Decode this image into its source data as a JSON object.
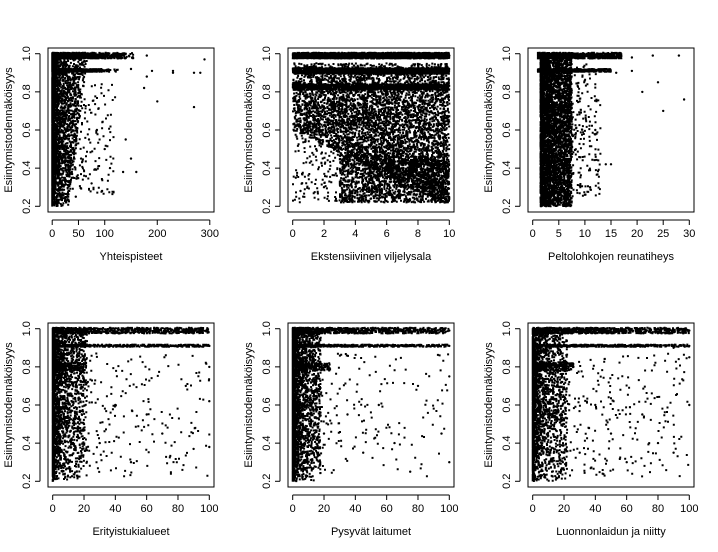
{
  "chart_data": [
    {
      "type": "scatter",
      "xlabel": "Yhteispisteet",
      "ylabel": "Esiintymistodennäköisyys",
      "xlim": [
        -8,
        308
      ],
      "ylim": [
        0.17,
        1.03
      ],
      "xticks": [
        0,
        50,
        100,
        200,
        300
      ],
      "xtick_labels": [
        "0",
        "50",
        "100",
        "200",
        "300"
      ],
      "yticks": [
        0.2,
        0.4,
        0.6,
        0.8,
        1.0
      ],
      "ytick_labels": [
        "0.2",
        "0.4",
        "0.6",
        "0.8",
        "1.0"
      ],
      "grid": false,
      "points": [
        [
          2,
          0.21
        ],
        [
          4,
          0.25
        ],
        [
          6,
          0.3
        ],
        [
          3,
          0.35
        ],
        [
          8,
          0.4
        ],
        [
          5,
          0.45
        ],
        [
          10,
          0.5
        ],
        [
          7,
          0.55
        ],
        [
          12,
          0.6
        ],
        [
          9,
          0.65
        ],
        [
          15,
          0.7
        ],
        [
          11,
          0.75
        ],
        [
          18,
          0.8
        ],
        [
          14,
          0.85
        ],
        [
          20,
          0.9
        ],
        [
          25,
          0.92
        ],
        [
          30,
          0.91
        ],
        [
          40,
          0.91
        ],
        [
          60,
          0.91
        ],
        [
          90,
          0.91
        ],
        [
          120,
          0.91
        ],
        [
          150,
          0.92
        ],
        [
          190,
          0.91
        ],
        [
          230,
          0.91
        ],
        [
          270,
          0.9
        ],
        [
          30,
          0.99
        ],
        [
          60,
          0.99
        ],
        [
          100,
          0.99
        ],
        [
          140,
          1.0
        ],
        [
          180,
          0.99
        ],
        [
          40,
          0.35
        ],
        [
          55,
          0.45
        ],
        [
          70,
          0.55
        ],
        [
          85,
          0.6
        ],
        [
          100,
          0.5
        ],
        [
          110,
          0.4
        ],
        [
          140,
          0.55
        ],
        [
          150,
          0.45
        ],
        [
          175,
          0.82
        ],
        [
          180,
          0.88
        ],
        [
          200,
          0.75
        ],
        [
          270,
          0.72
        ],
        [
          230,
          0.9
        ],
        [
          282,
          0.9
        ],
        [
          290,
          0.97
        ],
        [
          160,
          0.38
        ],
        [
          135,
          0.38
        ],
        [
          95,
          0.28
        ],
        [
          75,
          0.32
        ],
        [
          45,
          0.25
        ]
      ]
    },
    {
      "type": "scatter",
      "xlabel": "Ekstensiivinen viljelysala",
      "ylabel": "Esiintymistodennäköisyys",
      "xlim": [
        -0.3,
        10.3
      ],
      "ylim": [
        0.17,
        1.03
      ],
      "xticks": [
        0,
        2,
        4,
        6,
        8,
        10
      ],
      "xtick_labels": [
        "0",
        "2",
        "4",
        "6",
        "8",
        "10"
      ],
      "yticks": [
        0.2,
        0.4,
        0.6,
        0.8,
        1.0
      ],
      "ytick_labels": [
        "0.2",
        "0.4",
        "0.6",
        "0.8",
        "1.0"
      ],
      "grid": false,
      "points": [
        [
          0.1,
          0.99
        ],
        [
          2,
          0.99
        ],
        [
          4,
          0.99
        ],
        [
          6,
          0.99
        ],
        [
          8,
          0.99
        ],
        [
          10,
          0.99
        ],
        [
          0.2,
          0.91
        ],
        [
          3,
          0.91
        ],
        [
          5,
          0.9
        ],
        [
          7,
          0.91
        ],
        [
          9,
          0.91
        ],
        [
          0.3,
          0.82
        ],
        [
          2.5,
          0.81
        ],
        [
          5,
          0.8
        ],
        [
          7.5,
          0.81
        ],
        [
          9.8,
          0.82
        ],
        [
          1,
          0.7
        ],
        [
          3,
          0.65
        ],
        [
          5,
          0.6
        ],
        [
          7,
          0.68
        ],
        [
          9,
          0.62
        ],
        [
          1.5,
          0.5
        ],
        [
          3.5,
          0.45
        ],
        [
          5.5,
          0.4
        ],
        [
          7.5,
          0.38
        ],
        [
          9.5,
          0.42
        ],
        [
          2,
          0.3
        ],
        [
          4,
          0.28
        ],
        [
          6,
          0.25
        ],
        [
          8,
          0.3
        ],
        [
          9.8,
          0.25
        ],
        [
          0.5,
          0.28
        ],
        [
          0.2,
          0.35
        ]
      ]
    },
    {
      "type": "scatter",
      "xlabel": "Peltolohkojen reunatiheys",
      "ylabel": "Esiintymistodennäköisyys",
      "xlim": [
        -0.9,
        30.9
      ],
      "ylim": [
        0.17,
        1.03
      ],
      "xticks": [
        0,
        5,
        10,
        15,
        20,
        25,
        30
      ],
      "xtick_labels": [
        "0",
        "5",
        "10",
        "15",
        "20",
        "25",
        "30"
      ],
      "yticks": [
        0.2,
        0.4,
        0.6,
        0.8,
        1.0
      ],
      "ytick_labels": [
        "0.2",
        "0.4",
        "0.6",
        "0.8",
        "1.0"
      ],
      "grid": false,
      "points": [
        [
          3,
          0.22
        ],
        [
          4,
          0.3
        ],
        [
          5,
          0.4
        ],
        [
          3.5,
          0.5
        ],
        [
          4.5,
          0.6
        ],
        [
          3,
          0.7
        ],
        [
          5,
          0.8
        ],
        [
          4,
          0.9
        ],
        [
          6,
          0.95
        ],
        [
          8,
          0.99
        ],
        [
          11,
          0.99
        ],
        [
          15,
          0.99
        ],
        [
          19,
          0.98
        ],
        [
          23,
          0.99
        ],
        [
          28,
          0.99
        ],
        [
          10,
          0.91
        ],
        [
          13,
          0.91
        ],
        [
          16,
          0.9
        ],
        [
          19,
          0.91
        ],
        [
          9,
          0.75
        ],
        [
          12,
          0.6
        ],
        [
          14,
          0.42
        ],
        [
          15,
          0.42
        ],
        [
          11,
          0.3
        ],
        [
          10,
          0.26
        ],
        [
          24,
          0.85
        ],
        [
          25,
          0.7
        ],
        [
          29,
          0.76
        ],
        [
          21,
          0.8
        ]
      ]
    },
    {
      "type": "scatter",
      "xlabel": "Erityistukialueet",
      "ylabel": "Esiintymistodennäköisyys",
      "xlim": [
        -3,
        103
      ],
      "ylim": [
        0.17,
        1.03
      ],
      "xticks": [
        0,
        20,
        40,
        60,
        80,
        100
      ],
      "xtick_labels": [
        "0",
        "20",
        "40",
        "60",
        "80",
        "100"
      ],
      "yticks": [
        0.2,
        0.4,
        0.6,
        0.8,
        1.0
      ],
      "ytick_labels": [
        "0.2",
        "0.4",
        "0.6",
        "0.8",
        "1.0"
      ],
      "grid": false,
      "points": [
        [
          1,
          0.22
        ],
        [
          2,
          0.3
        ],
        [
          3,
          0.4
        ],
        [
          1,
          0.5
        ],
        [
          4,
          0.6
        ],
        [
          2,
          0.7
        ],
        [
          5,
          0.8
        ],
        [
          3,
          0.9
        ],
        [
          10,
          0.91
        ],
        [
          30,
          0.91
        ],
        [
          50,
          0.91
        ],
        [
          70,
          0.91
        ],
        [
          90,
          0.91
        ],
        [
          100,
          0.91
        ],
        [
          15,
          0.99
        ],
        [
          35,
          0.99
        ],
        [
          55,
          0.99
        ],
        [
          75,
          1.0
        ],
        [
          95,
          0.99
        ],
        [
          20,
          0.5
        ],
        [
          30,
          0.4
        ],
        [
          40,
          0.6
        ],
        [
          50,
          0.3
        ],
        [
          60,
          0.55
        ],
        [
          70,
          0.45
        ],
        [
          85,
          0.7
        ],
        [
          90,
          0.37
        ],
        [
          100,
          0.38
        ],
        [
          100,
          0.62
        ],
        [
          100,
          0.8
        ]
      ]
    },
    {
      "type": "scatter",
      "xlabel": "Pysyvät laitumet",
      "ylabel": "Esiintymistodennäköisyys",
      "xlim": [
        -3,
        103
      ],
      "ylim": [
        0.17,
        1.03
      ],
      "xticks": [
        0,
        20,
        40,
        60,
        80,
        100
      ],
      "xtick_labels": [
        "0",
        "20",
        "40",
        "60",
        "80",
        "100"
      ],
      "yticks": [
        0.2,
        0.4,
        0.6,
        0.8,
        1.0
      ],
      "ytick_labels": [
        "0.2",
        "0.4",
        "0.6",
        "0.8",
        "1.0"
      ],
      "grid": false,
      "points": [
        [
          1,
          0.22
        ],
        [
          2,
          0.3
        ],
        [
          3,
          0.4
        ],
        [
          1,
          0.5
        ],
        [
          4,
          0.6
        ],
        [
          2,
          0.7
        ],
        [
          5,
          0.8
        ],
        [
          3,
          0.9
        ],
        [
          10,
          0.91
        ],
        [
          30,
          0.91
        ],
        [
          50,
          0.91
        ],
        [
          70,
          0.91
        ],
        [
          90,
          0.91
        ],
        [
          100,
          0.91
        ],
        [
          15,
          0.99
        ],
        [
          35,
          0.99
        ],
        [
          55,
          0.99
        ],
        [
          75,
          1.0
        ],
        [
          100,
          0.99
        ],
        [
          20,
          0.45
        ],
        [
          35,
          0.55
        ],
        [
          45,
          0.35
        ],
        [
          55,
          0.6
        ],
        [
          65,
          0.4
        ],
        [
          75,
          0.25
        ],
        [
          80,
          0.7
        ],
        [
          95,
          0.45
        ],
        [
          100,
          0.3
        ],
        [
          100,
          0.75
        ]
      ]
    },
    {
      "type": "scatter",
      "xlabel": "Luonnonlaidun ja niitty",
      "ylabel": "Esiintymistodennäköisyys",
      "xlim": [
        -3,
        103
      ],
      "ylim": [
        0.17,
        1.03
      ],
      "xticks": [
        0,
        20,
        40,
        60,
        80,
        100
      ],
      "xtick_labels": [
        "0",
        "20",
        "40",
        "60",
        "80",
        "100"
      ],
      "yticks": [
        0.2,
        0.4,
        0.6,
        0.8,
        1.0
      ],
      "ytick_labels": [
        "0.2",
        "0.4",
        "0.6",
        "0.8",
        "1.0"
      ],
      "grid": false,
      "points": [
        [
          1,
          0.22
        ],
        [
          2,
          0.3
        ],
        [
          3,
          0.4
        ],
        [
          1,
          0.5
        ],
        [
          4,
          0.6
        ],
        [
          2,
          0.7
        ],
        [
          5,
          0.8
        ],
        [
          3,
          0.9
        ],
        [
          10,
          0.91
        ],
        [
          30,
          0.91
        ],
        [
          50,
          0.91
        ],
        [
          70,
          0.91
        ],
        [
          90,
          0.9
        ],
        [
          100,
          0.91
        ],
        [
          15,
          0.99
        ],
        [
          35,
          0.99
        ],
        [
          55,
          0.99
        ],
        [
          75,
          1.0
        ],
        [
          100,
          0.99
        ],
        [
          20,
          0.5
        ],
        [
          30,
          0.35
        ],
        [
          40,
          0.6
        ],
        [
          50,
          0.45
        ],
        [
          60,
          0.3
        ],
        [
          70,
          0.55
        ],
        [
          80,
          0.4
        ],
        [
          90,
          0.35
        ],
        [
          100,
          0.6
        ],
        [
          100,
          0.85
        ]
      ]
    }
  ]
}
